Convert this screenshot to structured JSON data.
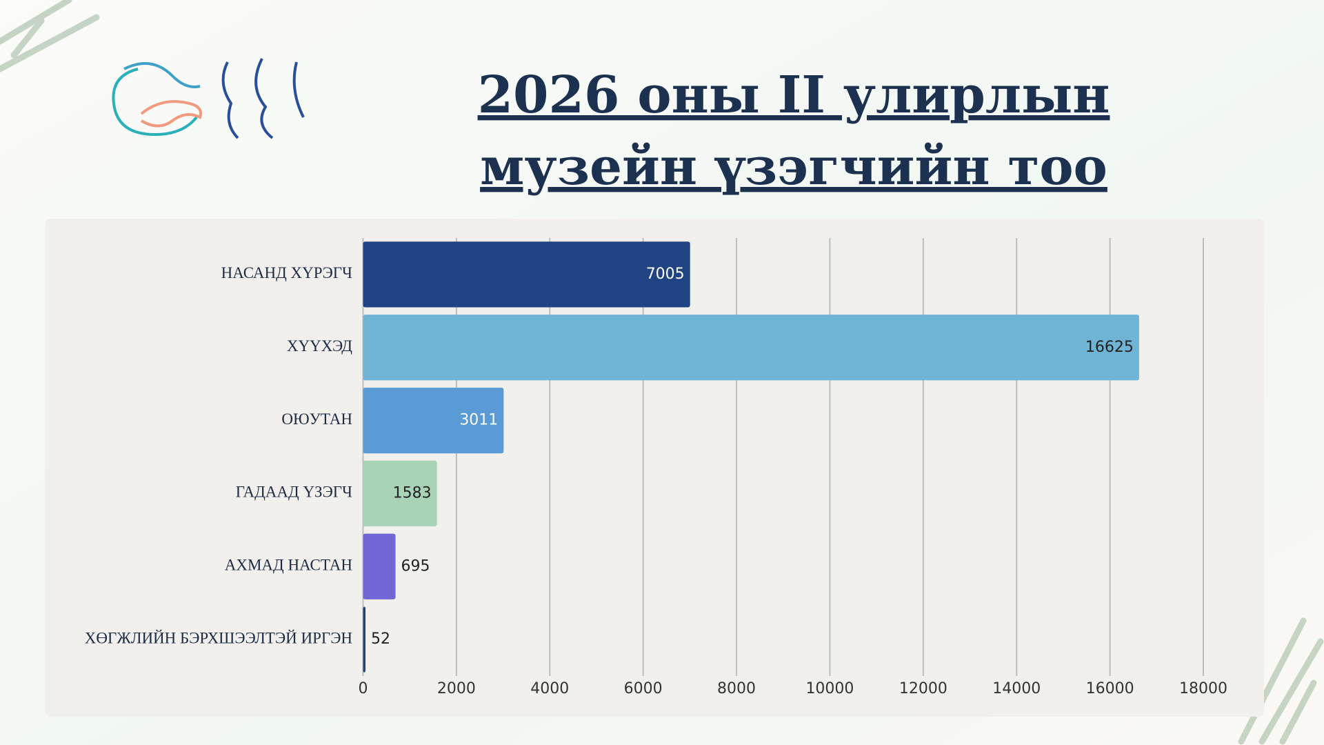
{
  "chart_data": {
    "type": "bar",
    "orientation": "horizontal",
    "title": [
      "2026 оны II улирлын ",
      "музейн  үзэгчийн тоо "
    ],
    "categories": [
      "НАСАНД ХҮРЭГЧ",
      "ХҮҮХЭД",
      "ОЮУТАН",
      "ГАДААД ҮЗЭГЧ",
      "АХМАД НАСТАН",
      "ХӨГЖЛИЙН БЭРХШЭЭЛТЭЙ ИРГЭН"
    ],
    "values": [
      7005,
      16625,
      3011,
      1583,
      695,
      52
    ],
    "colors": [
      "#1f4383",
      "#6fb3d5",
      "#5a9bd6",
      "#a8d3b7",
      "#7166d6",
      "#1f4383"
    ],
    "xlim": [
      0,
      18000
    ],
    "xticks": [
      0,
      2000,
      4000,
      6000,
      8000,
      10000,
      12000,
      14000,
      16000,
      18000
    ],
    "grid": true
  }
}
